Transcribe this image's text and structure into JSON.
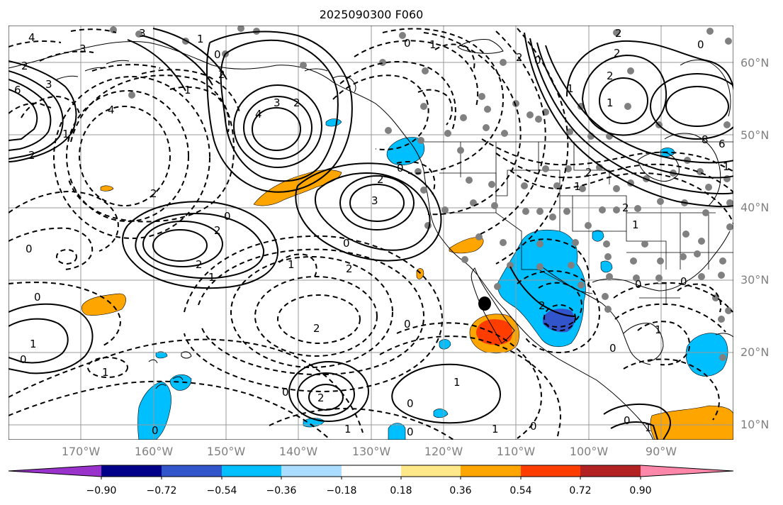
{
  "title": "2025090300 F060",
  "latitude_labels": [
    "60°N",
    "50°N",
    "40°N",
    "30°N",
    "20°N",
    "10°N"
  ],
  "longitude_labels": [
    "170°W",
    "160°W",
    "150°W",
    "140°W",
    "130°W",
    "120°W",
    "110°W",
    "100°W",
    "90°W"
  ],
  "colorbar": {
    "colors": [
      "#9933cc",
      "#000088",
      "#3355cc",
      "#00bfff",
      "#aaddff",
      "#ffffff",
      "#ffe88a",
      "#ffa500",
      "#ff3d00",
      "#b22222",
      "#ff88aa"
    ],
    "tick_labels": [
      "−0.90",
      "−0.72",
      "−0.54",
      "−0.36",
      "−0.18",
      "0.18",
      "0.36",
      "0.54",
      "0.72",
      "0.90"
    ]
  },
  "contour_labels": [
    "4",
    "3",
    "2",
    "6",
    "1",
    "3",
    "2",
    "4",
    "3",
    "1",
    "0",
    "2",
    "2",
    "1",
    "0",
    "3",
    "2",
    "2",
    "2",
    "1",
    "0",
    "1",
    "3",
    "4",
    "0",
    "8",
    "6",
    "1",
    "2",
    "0",
    "2",
    "2",
    "1",
    "2",
    "0",
    "1",
    "2",
    "1",
    "2",
    "1",
    "0",
    "1",
    "2",
    "0",
    "0",
    "0",
    "0",
    "2",
    "2",
    "1",
    "0",
    "1",
    "0",
    "2",
    "0",
    "0",
    "0",
    "1",
    "0",
    "1",
    "0",
    "1",
    "2",
    "0",
    "1",
    "1",
    "0"
  ],
  "colors": {
    "orange": "#ffa500",
    "red_orange": "#ff3d00",
    "light_orange": "#ffa500",
    "sky_blue": "#00bfff",
    "royal_blue": "#3355cc",
    "station_gray": "#808080",
    "grid_gray": "#9a9a9a"
  }
}
